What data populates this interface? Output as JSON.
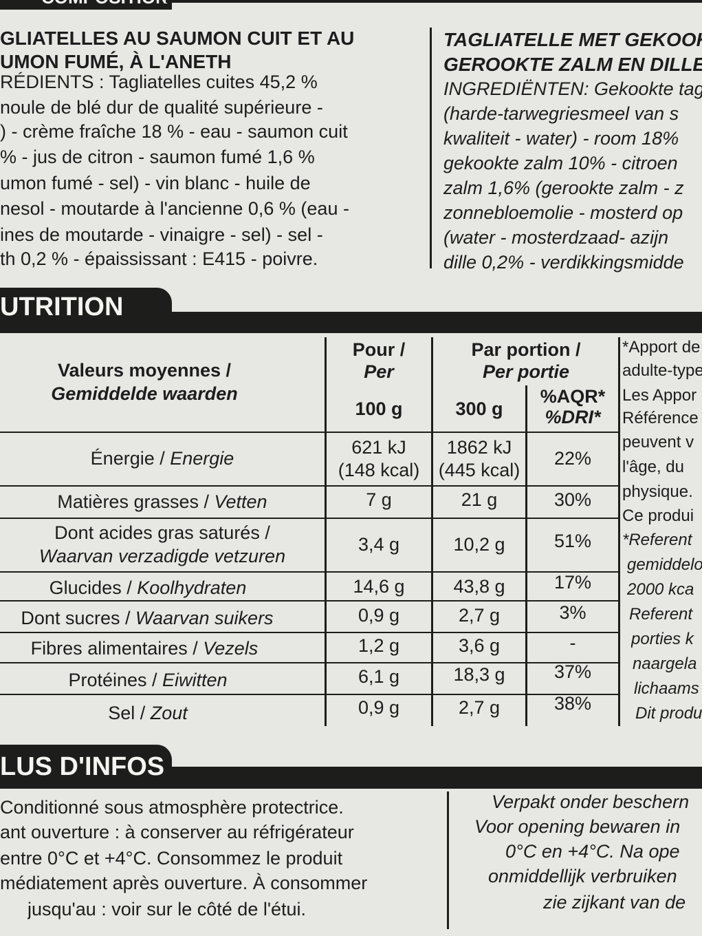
{
  "composition": {
    "header": "COMPOSITION",
    "fr_title": [
      "GLIATELLES AU SAUMON CUIT ET AU",
      "UMON FUMÉ, À L'ANETH"
    ],
    "fr_lines": [
      "RÉDIENTS : Tagliatelles cuites 45,2 %",
      "noule de blé dur de qualité supérieure -",
      ") - crème fraîche 18 % - eau - saumon cuit",
      "% - jus de citron - saumon fumé 1,6 %",
      "umon fumé - sel) - vin blanc - huile de",
      "nesol - moutarde à l'ancienne 0,6 % (eau -",
      "ines de moutarde - vinaigre - sel) - sel -",
      "th 0,2 % - épaississant : E415 - poivre."
    ],
    "nl_title": [
      "TAGLIATELLE MET GEKOOKT",
      "GEROOKTE ZALM EN DILLE"
    ],
    "nl_lines": [
      "INGREDIËNTEN: Gekookte tag",
      "(harde-tarwegriesmeel van s",
      "kwaliteit - water) - room 18%",
      "gekookte zalm 10% - citroen",
      "zalm 1,6% (gerookte zalm - z",
      "zonnebloemolie - mosterd op",
      "(water - mosterdzaad- azijn",
      "dille 0,2% - verdikkingsmidde"
    ]
  },
  "nutrition": {
    "header": "UTRITION",
    "col_label_fr": "Valeurs moyennes /",
    "col_label_nl": "Gemiddelde waarden",
    "col_per_1": "Pour /",
    "col_per_2": "Per",
    "col_per_3": "100 g",
    "col_portion_1": "Par portion /",
    "col_portion_2": "Per portie",
    "col_portion_3": "300 g",
    "col_dri_1": "%AQR*",
    "col_dri_2": "%DRI*",
    "rows": [
      {
        "fr": "Énergie / ",
        "nl": "Energie",
        "per100_1": "621 kJ",
        "per100_2": "(148 kcal)",
        "portion_1": "1862 kJ",
        "portion_2": "(445 kcal)",
        "dri": "22%"
      },
      {
        "fr": "Matières grasses / ",
        "nl": "Vetten",
        "per100": "7 g",
        "portion": "21 g",
        "dri": "30%"
      },
      {
        "fr": "Dont acides gras saturés /",
        "nl": "Waarvan verzadigde vetzuren",
        "per100": "3,4 g",
        "portion": "10,2 g",
        "dri": "51%"
      },
      {
        "fr": "Glucides / ",
        "nl": "Koolhydraten",
        "per100": "14,6 g",
        "portion": "43,8 g",
        "dri": "17%"
      },
      {
        "fr": "Dont sucres / ",
        "nl": "Waarvan suikers",
        "per100": "0,9 g",
        "portion": "2,7 g",
        "dri": "3%"
      },
      {
        "fr": "Fibres alimentaires / ",
        "nl": "Vezels",
        "per100": "1,2 g",
        "portion": "3,6 g",
        "dri": "-"
      },
      {
        "fr": "Protéines / ",
        "nl": "Eiwitten",
        "per100": "6,1 g",
        "portion": "18,3 g",
        "dri": "37%"
      },
      {
        "fr": "Sel / ",
        "nl": "Zout",
        "per100": "0,9 g",
        "portion": "2,7 g",
        "dri": "38%"
      }
    ],
    "side_notes": [
      "*Apport de",
      "adulte-type",
      "Les Appor",
      "Référence",
      "peuvent v",
      "l'âge, du",
      "physique.",
      "Ce produi",
      "*Referent",
      "gemiddelo",
      "2000 kca",
      "Referent",
      "porties k",
      "naargela",
      "lichaams",
      "Dit produ"
    ]
  },
  "more_info": {
    "header": "LUS D'INFOS",
    "fr_lines": [
      "Conditionné sous atmosphère protectrice.",
      "ant ouverture : à conserver au réfrigérateur",
      "entre 0°C et +4°C. Consommez le produit",
      "médiatement après ouverture. À consommer",
      "jusqu'au : voir sur le côté de l'étui."
    ],
    "nl_lines": [
      "Verpakt onder beschern",
      "Voor opening bewaren in",
      "0°C en +4°C. Na ope",
      "onmiddellijk verbruiken",
      "zie zijkant van de"
    ]
  }
}
